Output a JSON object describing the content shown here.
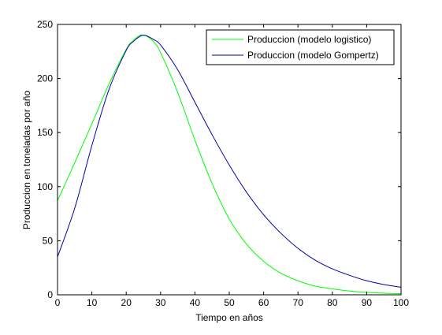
{
  "chart_data": {
    "type": "line",
    "title": "",
    "xlabel": "Tiempo en años",
    "ylabel": "Produccion en toneladas por año",
    "xlim": [
      0,
      100
    ],
    "ylim": [
      0,
      250
    ],
    "xticks": [
      0,
      10,
      20,
      30,
      40,
      50,
      60,
      70,
      80,
      90,
      100
    ],
    "yticks": [
      0,
      50,
      100,
      150,
      200,
      250
    ],
    "grid": false,
    "legend_position": "top-right",
    "series": [
      {
        "name": "Produccion (modelo logistico)",
        "color": "#00ff00",
        "x": [
          0,
          5,
          10,
          15,
          20,
          22,
          24,
          25,
          26,
          28,
          30,
          35,
          40,
          45,
          50,
          55,
          60,
          65,
          70,
          75,
          80,
          85,
          90,
          95,
          100
        ],
        "y": [
          87,
          122,
          158,
          195,
          227,
          235,
          240,
          240,
          239,
          234,
          224,
          187,
          143,
          103,
          70,
          47,
          31,
          20,
          13,
          8,
          5.5,
          3.5,
          2.3,
          1.5,
          1
        ]
      },
      {
        "name": "Produccion (modelo Gompertz)",
        "color": "#0000aa",
        "x": [
          0,
          5,
          10,
          15,
          20,
          22,
          24,
          25,
          26,
          28,
          30,
          35,
          40,
          45,
          50,
          55,
          60,
          65,
          70,
          75,
          80,
          85,
          90,
          95,
          100
        ],
        "y": [
          35,
          80,
          138,
          190,
          226,
          234,
          239,
          240,
          239.5,
          236,
          231,
          208,
          178,
          148,
          120,
          95,
          74,
          57,
          43,
          32,
          24,
          18,
          13,
          9.5,
          7
        ]
      }
    ]
  }
}
